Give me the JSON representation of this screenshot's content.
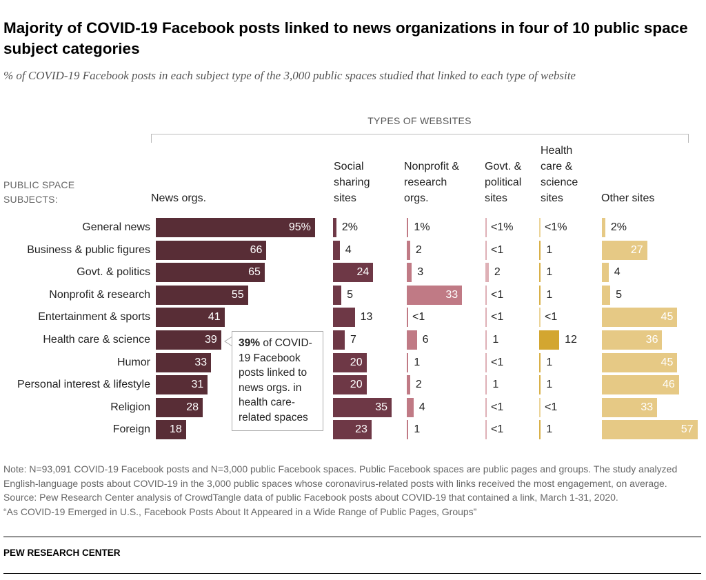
{
  "title": "Majority of COVID-19 Facebook posts linked to news organizations in four of 10 public space subject categories",
  "subtitle": "% of COVID-19 Facebook posts in each subject type of the 3,000 public spaces studied that linked to each type of website",
  "chart_data": {
    "type": "bar",
    "group_label": "TYPES OF WEBSITES",
    "row_header": "PUBLIC SPACE SUBJECTS:",
    "categories": [
      "General news",
      "Business & public figures",
      "Govt. & politics",
      "Nonprofit & research",
      "Entertainment & sports",
      "Health care & science",
      "Humor",
      "Personal interest & lifestyle",
      "Religion",
      "Foreign"
    ],
    "series": [
      {
        "name": "News orgs.",
        "color": "#582d36",
        "labels": [
          "95%",
          "66",
          "65",
          "55",
          "41",
          "39",
          "33",
          "31",
          "28",
          "18"
        ]
      },
      {
        "name": "Social sharing sites",
        "color": "#6e3846",
        "labels": [
          "2%",
          "4",
          "24",
          "5",
          "13",
          "7",
          "20",
          "20",
          "35",
          "23"
        ]
      },
      {
        "name": "Nonprofit & research orgs.",
        "color": "#c07a85",
        "labels": [
          "1%",
          "2",
          "3",
          "33",
          "<1",
          "6",
          "1",
          "2",
          "4",
          "1"
        ]
      },
      {
        "name": "Govt. & political sites",
        "color": "#deb0b6",
        "labels": [
          "<1%",
          "<1",
          "2",
          "<1",
          "<1",
          "1",
          "<1",
          "1",
          "<1",
          "<1"
        ]
      },
      {
        "name": "Health care & science sites",
        "color": "#d3a630",
        "labels": [
          "<1%",
          "1",
          "1",
          "1",
          "<1",
          "12",
          "1",
          "1",
          "<1",
          "1"
        ]
      },
      {
        "name": "Other sites",
        "color": "#e6c985",
        "labels": [
          "2%",
          "27",
          "4",
          "5",
          "45",
          "36",
          "45",
          "46",
          "33",
          "57"
        ]
      }
    ],
    "annotation": {
      "bold": "39%",
      "text": " of COVID-19 Facebook posts linked to news orgs. in health care-related spaces"
    }
  },
  "note": "Note: N=93,091 COVID-19 Facebook posts and N=3,000 public Facebook spaces. Public Facebook spaces are public pages and groups. The study analyzed English-language posts about COVID-19 in the 3,000 public spaces whose coronavirus-related posts with links received the most engagement, on average.",
  "source": "Source: Pew Research Center analysis of CrowdTangle data of public Facebook posts about COVID-19 that contained a link, March 1-31, 2020.",
  "report": "“As COVID-19 Emerged in U.S., Facebook Posts About It Appeared in a Wide Range of Public Pages, Groups”",
  "brand": "PEW RESEARCH CENTER"
}
